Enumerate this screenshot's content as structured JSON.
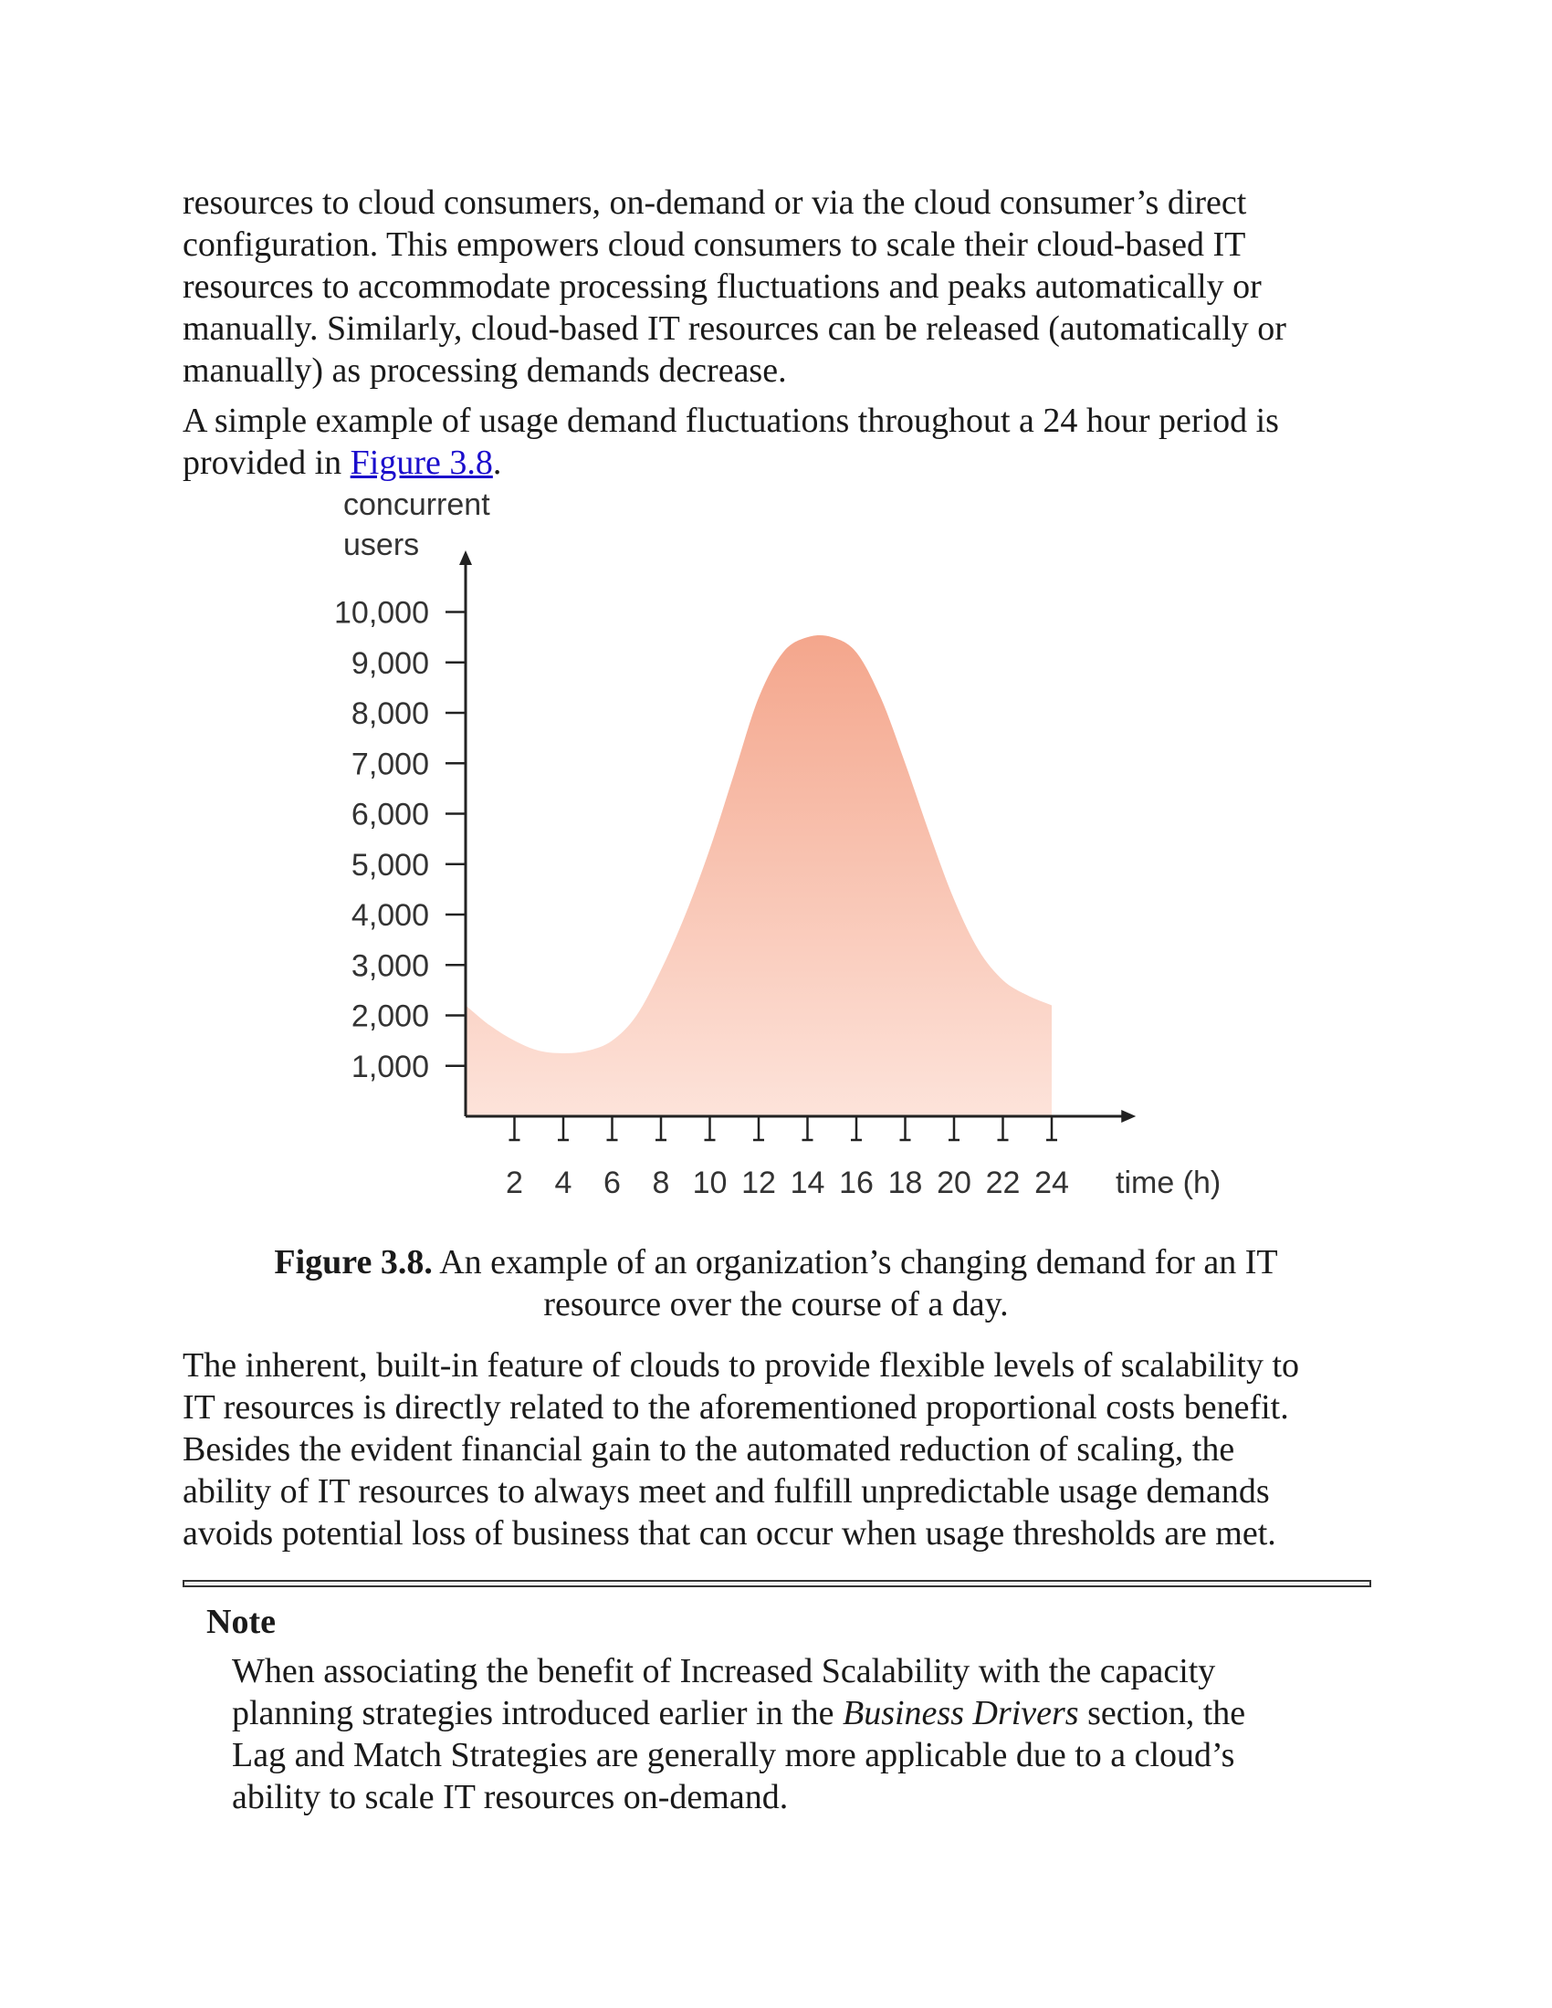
{
  "paragraphs": {
    "p1": [
      "resources to cloud consumers, on-demand or via the cloud consumer’s direct",
      "configuration. This empowers cloud consumers to scale their cloud-based IT",
      "resources to accommodate processing fluctuations and peaks automatically or",
      "manually. Similarly, cloud-based IT resources can be released (automatically or",
      "manually) as processing demands decrease."
    ],
    "p2_line1": "A simple example of usage demand fluctuations throughout a 24 hour period is",
    "p2_line2_prefix": "provided in ",
    "p2_link": "Figure 3.8",
    "p2_line2_suffix": ".",
    "p3": [
      "The inherent, built-in feature of clouds to provide flexible levels of scalability to",
      "IT resources is directly related to the aforementioned proportional costs benefit.",
      "Besides the evident financial gain to the automated reduction of scaling, the",
      "ability of IT resources to always meet and fulfill unpredictable usage demands",
      "avoids potential loss of business that can occur when usage thresholds are met."
    ]
  },
  "caption": {
    "label": "Figure 3.8.",
    "line1_rest": " An example of an organization’s changing demand for an IT",
    "line2": "resource over the course of a day."
  },
  "note": {
    "title": "Note",
    "line1": "When associating the benefit of Increased Scalability with the capacity",
    "line2_before": "planning strategies introduced earlier in the ",
    "line2_italic": "Business Drivers",
    "line2_after": " section, the",
    "line3": "Lag and Match Strategies are generally more applicable due to a cloud’s",
    "line4": "ability to scale IT resources on-demand."
  },
  "chart_data": {
    "type": "area",
    "title": "",
    "ylabel_line1": "concurrent",
    "ylabel_line2": "users",
    "xlabel": "time (h)",
    "y_ticks": [
      10000,
      9000,
      8000,
      7000,
      6000,
      5000,
      4000,
      3000,
      2000,
      1000
    ],
    "y_tick_labels": [
      "10,000",
      "9,000",
      "8,000",
      "7,000",
      "6,000",
      "5,000",
      "4,000",
      "3,000",
      "2,000",
      "1,000"
    ],
    "x_ticks": [
      2,
      4,
      6,
      8,
      10,
      12,
      14,
      16,
      18,
      20,
      22,
      24
    ],
    "x_tick_labels": [
      "2",
      "4",
      "6",
      "8",
      "10",
      "12",
      "14",
      "16",
      "18",
      "20",
      "22",
      "24"
    ],
    "xlim": [
      0,
      27
    ],
    "ylim": [
      0,
      11000
    ],
    "x": [
      0,
      1,
      2,
      3,
      4,
      5,
      6,
      7,
      8,
      9,
      10,
      11,
      12,
      13,
      14,
      15,
      16,
      17,
      18,
      19,
      20,
      21,
      22,
      23,
      24
    ],
    "y": [
      2200,
      1800,
      1500,
      1300,
      1250,
      1300,
      1500,
      2000,
      2900,
      4000,
      5300,
      6800,
      8300,
      9200,
      9500,
      9500,
      9200,
      8300,
      7000,
      5600,
      4300,
      3300,
      2700,
      2400,
      2200
    ],
    "fill_top_color": "#f4a68c",
    "fill_bottom_color": "#fde3da",
    "grid": false
  }
}
